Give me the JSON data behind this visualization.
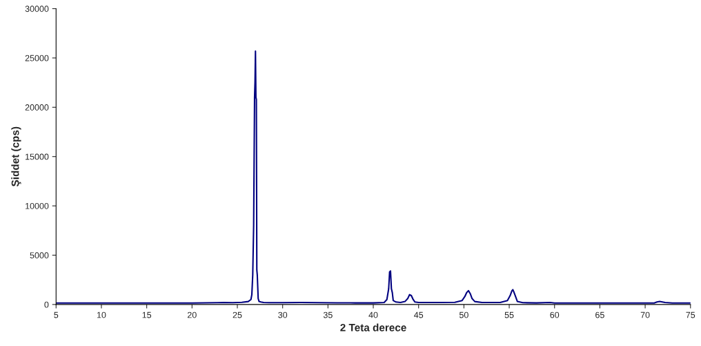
{
  "chart_data": {
    "type": "line",
    "xlabel": "2 Teta derece",
    "ylabel": "Şiddet (cps)",
    "series": [
      {
        "color": "#000080",
        "x": [
          5,
          10,
          15,
          20,
          22.8,
          23.5,
          24.5,
          25.5,
          26.2,
          26.5,
          26.6,
          26.7,
          26.8,
          26.9,
          26.95,
          27.0,
          27.05,
          27.1,
          27.15,
          27.2,
          27.3,
          27.4,
          27.6,
          27.9,
          28.5,
          30,
          32,
          34,
          36,
          38,
          40,
          41.2,
          41.5,
          41.7,
          41.8,
          41.9,
          42.0,
          42.1,
          42.2,
          42.5,
          43.0,
          43.5,
          43.8,
          44.0,
          44.2,
          44.4,
          44.6,
          45.0,
          47,
          49,
          49.8,
          50.1,
          50.3,
          50.5,
          50.7,
          50.9,
          51.2,
          52,
          53,
          54,
          54.8,
          55.1,
          55.3,
          55.4,
          55.5,
          55.7,
          55.9,
          56.5,
          58,
          59.5,
          60,
          62,
          65,
          68,
          71,
          71.3,
          71.6,
          71.9,
          72.2,
          73,
          75
        ],
        "values": [
          150,
          150,
          150,
          150,
          180,
          200,
          180,
          220,
          300,
          500,
          1000,
          3000,
          8000,
          21000,
          22500,
          25700,
          21000,
          20800,
          3500,
          3000,
          600,
          300,
          250,
          200,
          180,
          180,
          200,
          180,
          170,
          160,
          160,
          200,
          500,
          1600,
          3300,
          3400,
          1600,
          1200,
          400,
          250,
          200,
          300,
          600,
          1000,
          900,
          500,
          250,
          200,
          200,
          220,
          400,
          800,
          1200,
          1400,
          1100,
          600,
          300,
          200,
          200,
          200,
          400,
          900,
          1400,
          1500,
          1300,
          800,
          300,
          180,
          160,
          200,
          150,
          150,
          150,
          150,
          150,
          250,
          300,
          250,
          200,
          150,
          150
        ]
      }
    ],
    "xlim": [
      5,
      75
    ],
    "xticks": [
      5,
      10,
      15,
      20,
      25,
      30,
      35,
      40,
      45,
      50,
      55,
      60,
      65,
      70,
      75
    ],
    "ylim": [
      0,
      30000
    ],
    "yticks": [
      0,
      5000,
      10000,
      15000,
      20000,
      25000,
      30000
    ],
    "grid": false,
    "legend": false
  }
}
